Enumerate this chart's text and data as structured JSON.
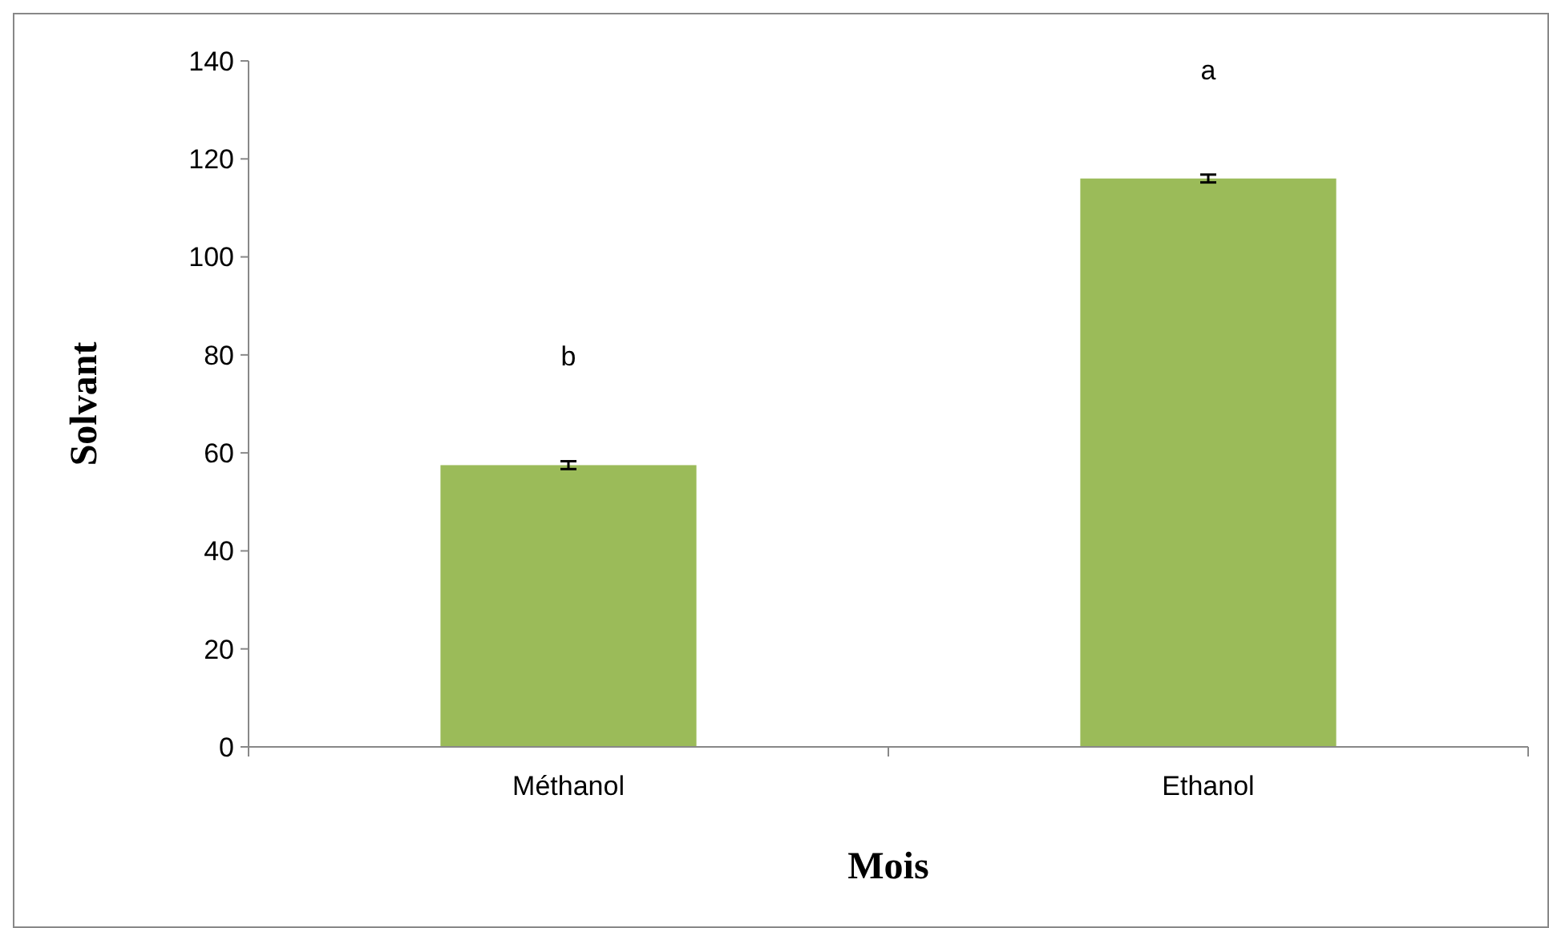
{
  "chart_data": {
    "type": "bar",
    "xlabel": "Mois",
    "ylabel": "Solvant",
    "categories": [
      "Méthanol",
      "Ethanol"
    ],
    "values": [
      57.5,
      116
    ],
    "errors": [
      0.8,
      0.8
    ],
    "color": "#9bbb59",
    "ylim": [
      0,
      140
    ],
    "yticks": [
      0,
      20,
      40,
      60,
      80,
      100,
      120,
      140
    ],
    "grid": false,
    "annotations": [
      "b",
      "a"
    ]
  }
}
